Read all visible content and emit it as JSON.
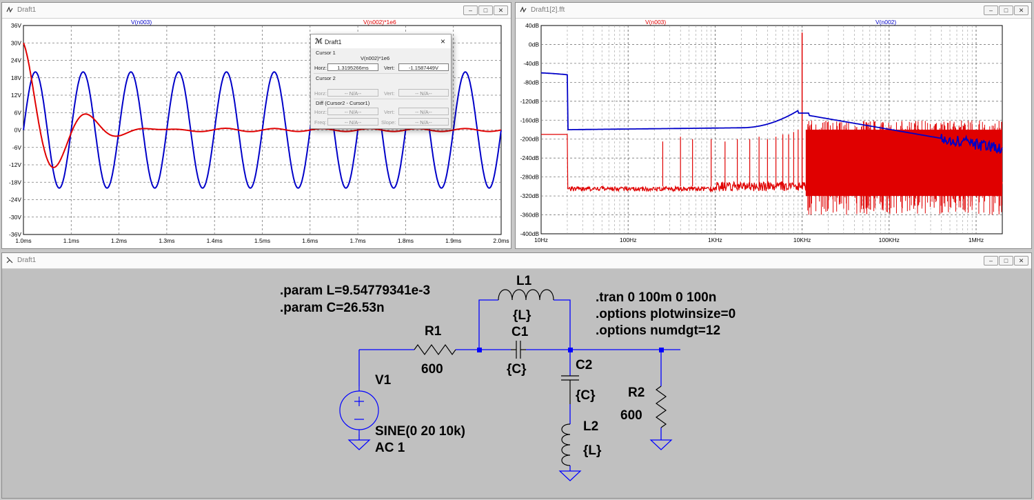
{
  "window_left": {
    "title": "Draft1",
    "trace_labels": [
      {
        "text": "V(n003)",
        "color": "#0000c8"
      },
      {
        "text": "V(n002)*1e6",
        "color": "#e00000"
      }
    ],
    "y_ticks": [
      "36V",
      "30V",
      "24V",
      "18V",
      "12V",
      "6V",
      "0V",
      "-6V",
      "-12V",
      "-18V",
      "-24V",
      "-30V",
      "-36V"
    ],
    "x_ticks": [
      "1.0ms",
      "1.1ms",
      "1.2ms",
      "1.3ms",
      "1.4ms",
      "1.5ms",
      "1.6ms",
      "1.7ms",
      "1.8ms",
      "1.9ms",
      "2.0ms"
    ]
  },
  "cursor_dialog": {
    "title": "Draft1",
    "cursor1_label": "Cursor 1",
    "cursor1_trace": "V(n002)*1e6",
    "horz_label": "Horz:",
    "vert_label": "Vert:",
    "cursor1_horz": "1.3195266ms",
    "cursor1_vert": "-1.1587449V",
    "cursor2_label": "Cursor 2",
    "na": "-- N/A--",
    "diff_label": "Diff (Cursor2 - Cursor1)",
    "freq_label": "Freq:",
    "slope_label": "Slope:"
  },
  "window_right": {
    "title": "Draft1[2].fft",
    "trace_labels": [
      {
        "text": "V(n003)",
        "color": "#e00000"
      },
      {
        "text": "V(n002)",
        "color": "#0000c8"
      }
    ],
    "y_ticks": [
      "40dB",
      "0dB",
      "-40dB",
      "-80dB",
      "-120dB",
      "-160dB",
      "-200dB",
      "-240dB",
      "-280dB",
      "-320dB",
      "-360dB",
      "-400dB"
    ],
    "x_ticks": [
      "10Hz",
      "100Hz",
      "1KHz",
      "10KHz",
      "100KHz",
      "1MHz"
    ]
  },
  "schematic": {
    "title": "Draft1",
    "param_lines": [
      ".param L=9.54779341e-3",
      ".param C=26.53n"
    ],
    "directive_lines": [
      ".tran 0 100m 0 100n",
      ".options plotwinsize=0",
      ".options numdgt=12"
    ],
    "components": {
      "v1_name": "V1",
      "v1_value_lines": [
        "SINE(0 20 10k)",
        "AC 1"
      ],
      "r1_name": "R1",
      "r1_value": "600",
      "l1_name": "L1",
      "l1_value": "{L}",
      "c1_name": "C1",
      "c1_value": "{C}",
      "c2_name": "C2",
      "c2_value": "{C}",
      "l2_name": "L2",
      "l2_value": "{L}",
      "r2_name": "R2",
      "r2_value": "600"
    }
  },
  "window_buttons": [
    "–",
    "□",
    "✕"
  ],
  "colors": {
    "blue_trace": "#0000c8",
    "red_trace": "#e00000",
    "wire": "#0000ff",
    "node": "#0000ff"
  }
}
